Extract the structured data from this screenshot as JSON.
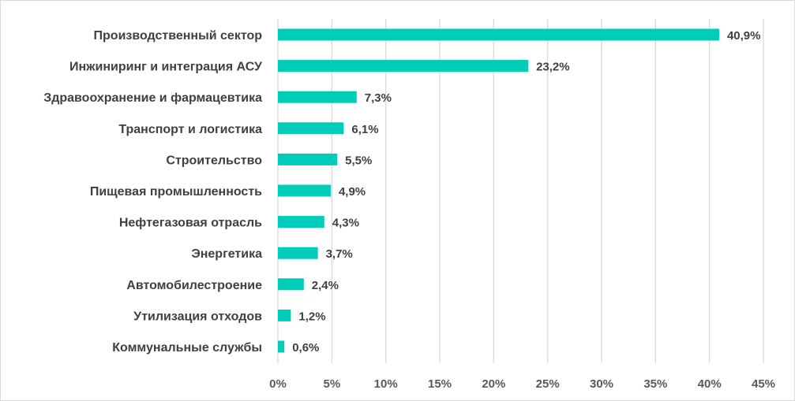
{
  "chart_data": {
    "type": "bar",
    "orientation": "horizontal",
    "title": "",
    "xlabel": "",
    "ylabel": "",
    "xlim": [
      0,
      45
    ],
    "tick_step": 5,
    "tick_labels": [
      "0%",
      "5%",
      "10%",
      "15%",
      "20%",
      "25%",
      "30%",
      "35%",
      "40%",
      "45%"
    ],
    "grid": true,
    "legend": "none",
    "bar_color": "#00CDB9",
    "categories": [
      "Производственный сектор",
      "Инжиниринг и интеграция АСУ",
      "Здравоохранение и фармацевтика",
      "Транспорт и логистика",
      "Строительство",
      "Пищевая промышленность",
      "Нефтегазовая отрасль",
      "Энергетика",
      "Автомобилестроение",
      "Утилизация отходов",
      "Коммунальные службы"
    ],
    "values": [
      40.9,
      23.2,
      7.3,
      6.1,
      5.5,
      4.9,
      4.3,
      3.7,
      2.4,
      1.2,
      0.6
    ],
    "data_labels": [
      "40,9%",
      "23,2%",
      "7,3%",
      "6,1%",
      "5,5%",
      "4,9%",
      "4,3%",
      "3,7%",
      "2,4%",
      "1,2%",
      "0,6%"
    ]
  }
}
